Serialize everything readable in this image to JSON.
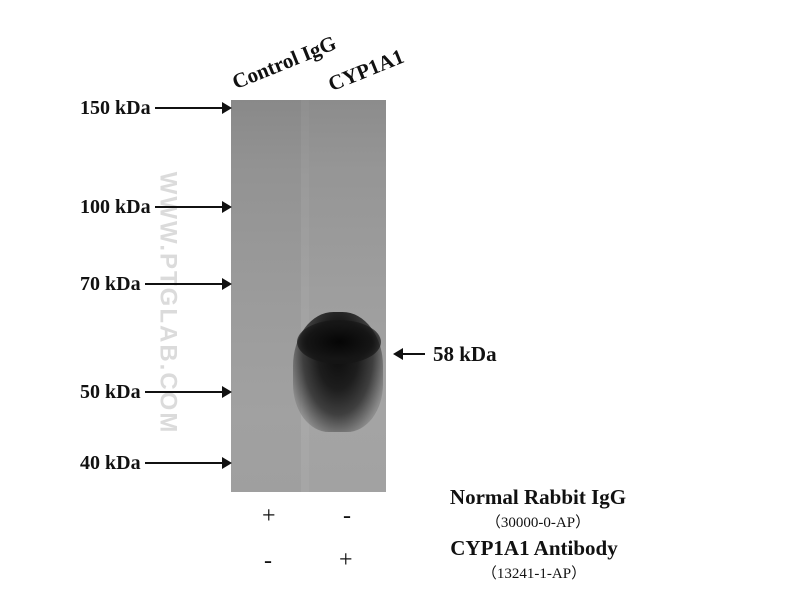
{
  "lanes": {
    "control_label": "Control IgG",
    "cyp_label": "CYP1A1"
  },
  "watermark": "WWW.PTGLAB.COM",
  "markers": {
    "m150": "150 kDa",
    "m100": "100 kDa",
    "m70": "70 kDa",
    "m50": "50 kDa",
    "m40": "40 kDa"
  },
  "band_marker": "58 kDa",
  "reagents": {
    "igg": {
      "name": "Normal Rabbit IgG",
      "catalog": "（30000-0-AP）",
      "lane1": "+",
      "lane2": "-"
    },
    "cyp": {
      "name": "CYP1A1 Antibody",
      "catalog": "（13241-1-AP）",
      "lane1": "-",
      "lane2": "+"
    }
  }
}
